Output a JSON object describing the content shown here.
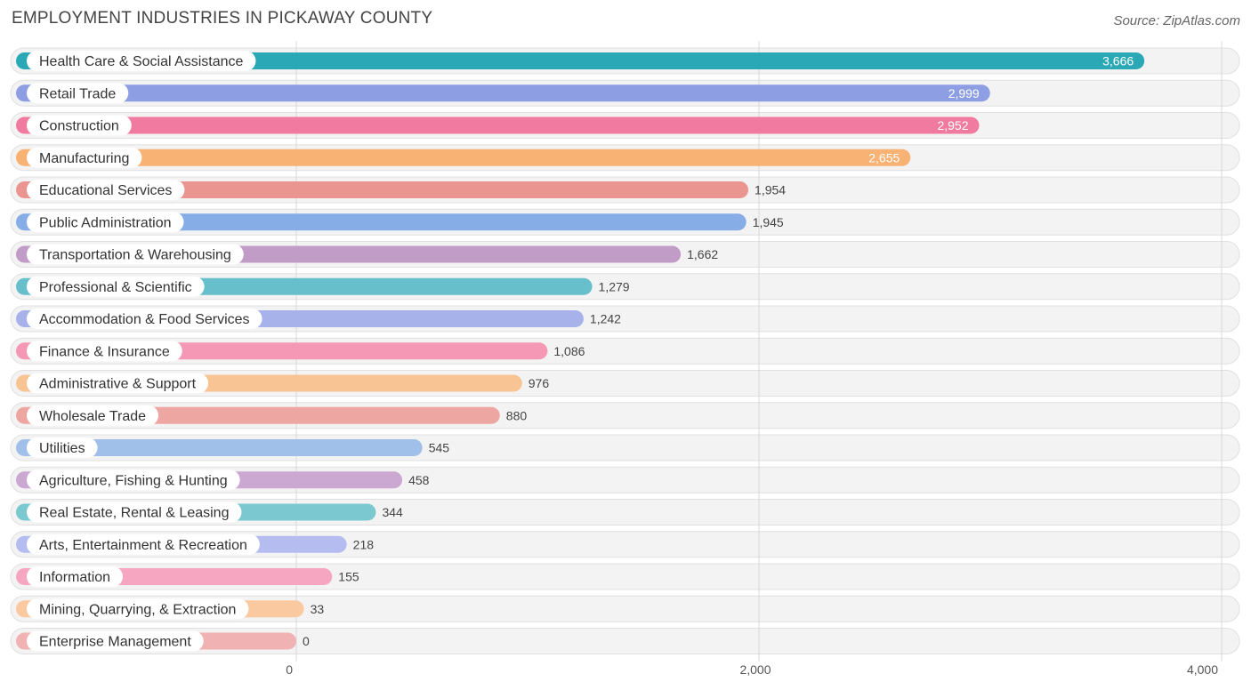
{
  "header": {
    "title": "EMPLOYMENT INDUSTRIES IN PICKAWAY COUNTY",
    "source": "Source: ZipAtlas.com"
  },
  "chart_data": {
    "type": "bar",
    "orientation": "horizontal",
    "title": "EMPLOYMENT INDUSTRIES IN PICKAWAY COUNTY",
    "xlabel": "",
    "ylabel": "",
    "xlim": [
      0,
      4000
    ],
    "ticks": [
      0,
      2000,
      4000
    ],
    "tick_labels": [
      "0",
      "2,000",
      "4,000"
    ],
    "grid": true,
    "categories": [
      "Health Care & Social Assistance",
      "Retail Trade",
      "Construction",
      "Manufacturing",
      "Educational Services",
      "Public Administration",
      "Transportation & Warehousing",
      "Professional & Scientific",
      "Accommodation & Food Services",
      "Finance & Insurance",
      "Administrative & Support",
      "Wholesale Trade",
      "Utilities",
      "Agriculture, Fishing & Hunting",
      "Real Estate, Rental & Leasing",
      "Arts, Entertainment & Recreation",
      "Information",
      "Mining, Quarrying, & Extraction",
      "Enterprise Management"
    ],
    "values": [
      3666,
      2999,
      2952,
      2655,
      1954,
      1945,
      1662,
      1279,
      1242,
      1086,
      976,
      880,
      545,
      458,
      344,
      218,
      155,
      33,
      0
    ],
    "value_labels": [
      "3,666",
      "2,999",
      "2,952",
      "2,655",
      "1,954",
      "1,945",
      "1,662",
      "1,279",
      "1,242",
      "1,086",
      "976",
      "880",
      "545",
      "458",
      "344",
      "218",
      "155",
      "33",
      "0"
    ],
    "colors": [
      "#2aa8b5",
      "#8d9ee3",
      "#f07aa0",
      "#f8b273",
      "#ea9590",
      "#86ade6",
      "#c19cc6",
      "#67bfcb",
      "#a7b2ea",
      "#f598b6",
      "#f9c493",
      "#eea6a2",
      "#a0c0ea",
      "#cba8d2",
      "#7bc8d0",
      "#b5bdf0",
      "#f7a6c2",
      "#fac9a0",
      "#f0b2b2"
    ]
  }
}
